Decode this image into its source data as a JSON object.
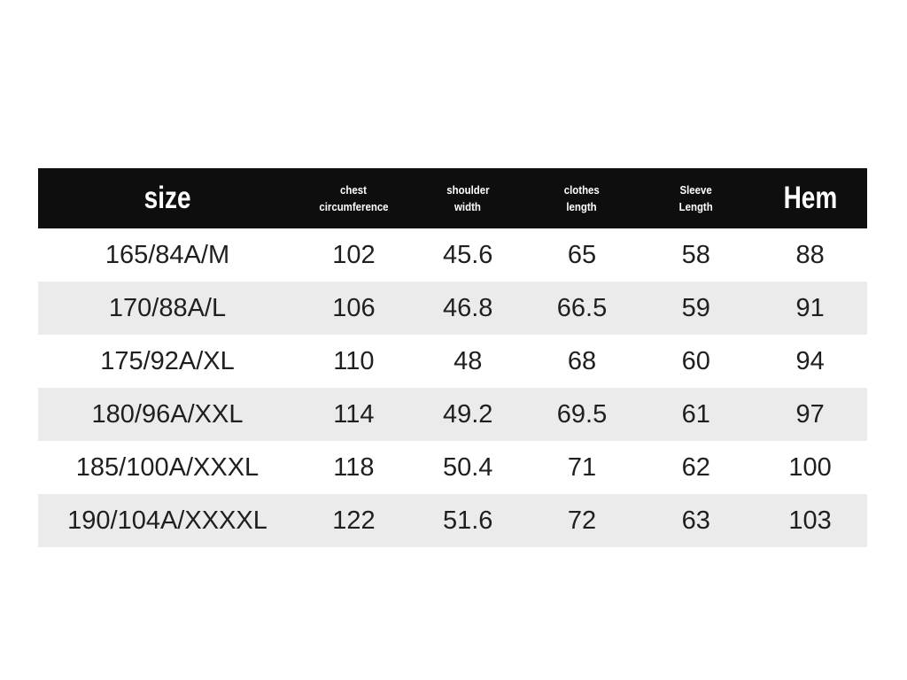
{
  "colors": {
    "page_background": "#ffffff",
    "header_background": "#0e0e0e",
    "header_text": "#ffffff",
    "alt_row_background": "#ebebeb",
    "data_text": "#1f1f1f"
  },
  "size_chart": {
    "header": {
      "size_label": "size",
      "chest_line1": "chest",
      "chest_line2": "circumference",
      "shoulder_line1": "shoulder",
      "shoulder_line2": "width",
      "clothes_line1": "clothes",
      "clothes_line2": "length",
      "sleeve_line1": "Sleeve",
      "sleeve_line2": "Length",
      "hem_label": "Hem"
    },
    "rows": [
      {
        "size": "165/84A/M",
        "chest": "102",
        "shoulder": "45.6",
        "clothes": "65",
        "sleeve": "58",
        "hem": "88"
      },
      {
        "size": "170/88A/L",
        "chest": "106",
        "shoulder": "46.8",
        "clothes": "66.5",
        "sleeve": "59",
        "hem": "91"
      },
      {
        "size": "175/92A/XL",
        "chest": "110",
        "shoulder": "48",
        "clothes": "68",
        "sleeve": "60",
        "hem": "94"
      },
      {
        "size": "180/96A/XXL",
        "chest": "114",
        "shoulder": "49.2",
        "clothes": "69.5",
        "sleeve": "61",
        "hem": "97"
      },
      {
        "size": "185/100A/XXXL",
        "chest": "118",
        "shoulder": "50.4",
        "clothes": "71",
        "sleeve": "62",
        "hem": "100"
      },
      {
        "size": "190/104A/XXXXL",
        "chest": "122",
        "shoulder": "51.6",
        "clothes": "72",
        "sleeve": "63",
        "hem": "103"
      }
    ]
  },
  "chart_data": {
    "type": "table",
    "columns": [
      "size",
      "chest circumference",
      "shoulder width",
      "clothes length",
      "Sleeve Length",
      "Hem"
    ],
    "rows": [
      [
        "165/84A/M",
        102,
        45.6,
        65,
        58,
        88
      ],
      [
        "170/88A/L",
        106,
        46.8,
        66.5,
        59,
        91
      ],
      [
        "175/92A/XL",
        110,
        48,
        68,
        60,
        94
      ],
      [
        "180/96A/XXL",
        114,
        49.2,
        69.5,
        61,
        97
      ],
      [
        "185/100A/XXXL",
        118,
        50.4,
        71,
        62,
        100
      ],
      [
        "190/104A/XXXXL",
        122,
        51.6,
        72,
        63,
        103
      ]
    ],
    "layout": {
      "header_style": "black band, white condensed bold text",
      "row_striping": "white / light gray alternating",
      "grid": "off"
    }
  }
}
